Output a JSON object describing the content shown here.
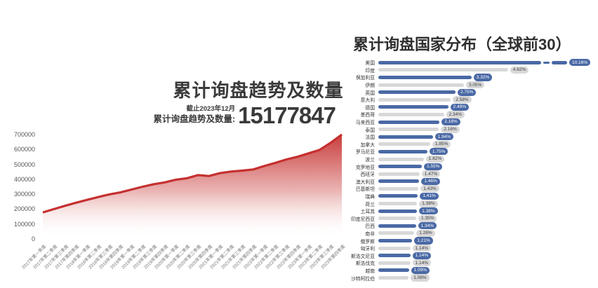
{
  "page": {
    "background": "#ffffff"
  },
  "colors": {
    "red": "#c5302f",
    "blue": "#4a69a5",
    "gray_bar": "#d8d8d8",
    "title_text": "#3a3a3a",
    "axis_text": "#555555"
  },
  "left_chart": {
    "title": "累计询盘趋势及数量",
    "as_of": "截止2023年12月",
    "count_label": "累计询盘趋势及数量:",
    "total": "15177847"
  },
  "right_chart": {
    "title": "累计询盘国家分布（全球前30）"
  },
  "chart_data": [
    {
      "type": "area",
      "title": "累计询盘趋势及数量",
      "xlabel": "",
      "ylabel": "",
      "ylim": [
        0,
        700000
      ],
      "yticks": [
        0,
        100000,
        200000,
        300000,
        400000,
        500000,
        600000,
        700000
      ],
      "grid": false,
      "legend": false,
      "line_color": "#c5302f",
      "x": [
        "2017年第一季度",
        "2017年第二季度",
        "2017年第三季度",
        "2017年第四季度",
        "2018年第一季度",
        "2018年第二季度",
        "2018年第三季度",
        "2018年第四季度",
        "2019年第一季度",
        "2019年第二季度",
        "2019年第三季度",
        "2019年第四季度",
        "2020年第一季度",
        "2020年第二季度",
        "2020年第三季度",
        "2020年第四季度",
        "2021年第一季度",
        "2021年第二季度",
        "2021年第三季度",
        "2021年第四季度",
        "2022年第一季度",
        "2022年第二季度",
        "2022年第三季度",
        "2022年第四季度",
        "2023年第一季度",
        "2023年第二季度",
        "2023年第三季度",
        "2023年第四季度"
      ],
      "values": [
        178000,
        200000,
        222000,
        243000,
        262000,
        281000,
        299000,
        312000,
        331000,
        350000,
        367000,
        379000,
        397000,
        407000,
        428000,
        422000,
        441000,
        452000,
        458000,
        466000,
        489000,
        510000,
        533000,
        551000,
        574000,
        597000,
        645000,
        700000
      ]
    },
    {
      "type": "bar",
      "orientation": "horizontal",
      "title": "累计询盘国家分布（全球前30）",
      "grid": false,
      "legend": false,
      "axis_break_on_first_bar": true,
      "categories": [
        "美国",
        "印度",
        "保加利亚",
        "伊朗",
        "英国",
        "意大利",
        "德国",
        "墨西哥",
        "马来西亚",
        "泰国",
        "法国",
        "加拿大",
        "罗马尼亚",
        "波兰",
        "克罗地亚",
        "西班牙",
        "澳大利亚",
        "巴基斯坦",
        "瑞典",
        "荷兰",
        "土耳其",
        "印度尼西亚",
        "巴西",
        "南非",
        "俄罗斯",
        "匈牙利",
        "斯洛文尼亚",
        "斯洛伐克",
        "越南",
        "沙特阿拉伯"
      ],
      "values": [
        10.16,
        4.62,
        3.32,
        3.05,
        2.75,
        2.58,
        2.49,
        2.34,
        2.18,
        2.16,
        1.94,
        1.85,
        1.75,
        1.62,
        1.55,
        1.47,
        1.46,
        1.43,
        1.41,
        1.38,
        1.38,
        1.35,
        1.34,
        1.28,
        1.21,
        1.14,
        1.14,
        1.14,
        1.09,
        1.08
      ],
      "labels": [
        "10.16%",
        "4.62%",
        "3.32%",
        "3.05%",
        "2.75%",
        "2.58%",
        "2.49%",
        "2.34%",
        "2.18%",
        "2.16%",
        "1.94%",
        "1.85%",
        "1.75%",
        "1.62%",
        "1.55%",
        "1.47%",
        "1.46%",
        "1.43%",
        "1.41%",
        "1.38%",
        "1.38%",
        "1.35%",
        "1.34%",
        "1.28%",
        "1.21%",
        "1.14%",
        "1.14%",
        "1.14%",
        "1.09%",
        "1.08%"
      ]
    }
  ]
}
